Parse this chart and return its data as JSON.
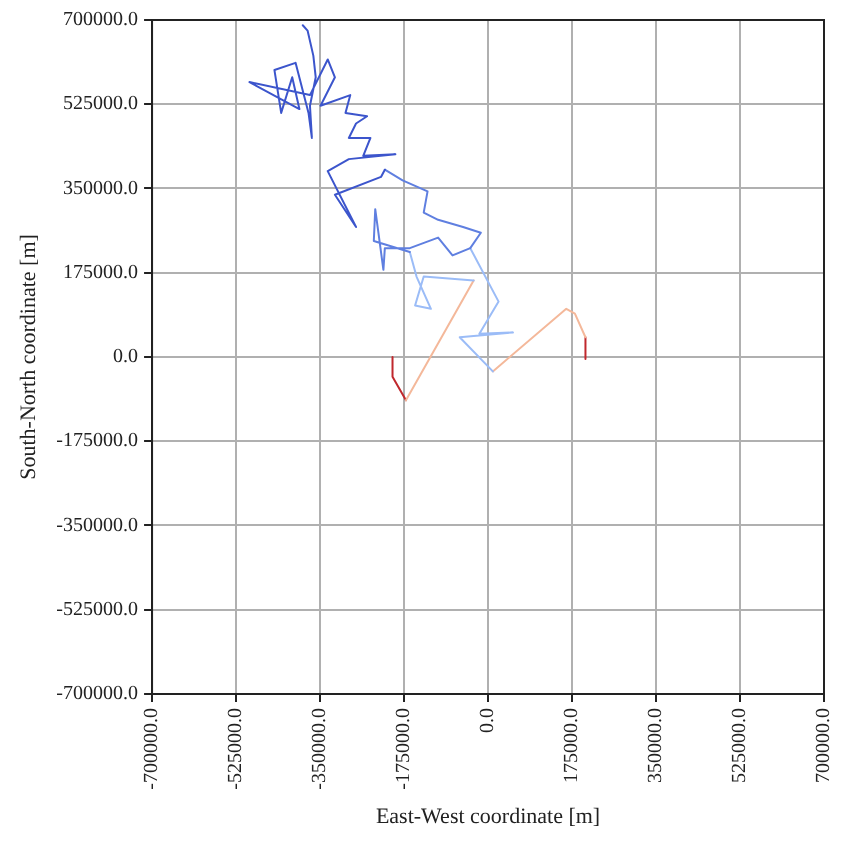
{
  "chart_data": {
    "type": "line",
    "xlabel": "East-West coordinate [m]",
    "ylabel": "South-North coordinate [m]",
    "xlim": [
      -700000,
      700000
    ],
    "ylim": [
      -700000,
      700000
    ],
    "xticks": [
      {
        "value": -700000,
        "label": "-700000.0"
      },
      {
        "value": -525000,
        "label": "-525000.0"
      },
      {
        "value": -350000,
        "label": "-350000.0"
      },
      {
        "value": -175000,
        "label": "-175000.0"
      },
      {
        "value": 0,
        "label": "0.0"
      },
      {
        "value": 175000,
        "label": "175000.0"
      },
      {
        "value": 350000,
        "label": "350000.0"
      },
      {
        "value": 525000,
        "label": "525000.0"
      },
      {
        "value": 700000,
        "label": "700000.0"
      }
    ],
    "yticks": [
      {
        "value": -700000,
        "label": "-700000.0"
      },
      {
        "value": -525000,
        "label": "-525000.0"
      },
      {
        "value": -350000,
        "label": "-350000.0"
      },
      {
        "value": -175000,
        "label": "-175000.0"
      },
      {
        "value": 0,
        "label": "0.0"
      },
      {
        "value": 175000,
        "label": "175000.0"
      },
      {
        "value": 350000,
        "label": "350000.0"
      },
      {
        "value": 525000,
        "label": "525000.0"
      },
      {
        "value": 700000,
        "label": "700000.0"
      }
    ],
    "grid": true,
    "legend": false,
    "marker": "none",
    "line_style": "solid",
    "series": [
      {
        "color": "#3c55cc",
        "x": [
          -386000,
          -376000,
          -364000,
          -359000,
          -371000,
          -367000,
          -374000,
          -401000,
          -445000,
          -431000,
          -408000,
          -393000,
          -497000,
          -371000,
          -334000,
          -319000,
          -349000,
          -287000,
          -297000,
          -252000,
          -275000,
          -290000,
          -245000,
          -260000,
          -193000,
          -290000,
          -334000,
          -275000,
          -319000,
          -223000,
          -215000
        ],
        "values": [
          689000,
          678000,
          626000,
          581000,
          522000,
          455000,
          507000,
          611000,
          596000,
          507000,
          581000,
          515000,
          571000,
          544000,
          618000,
          581000,
          522000,
          544000,
          507000,
          500000,
          485000,
          455000,
          455000,
          418000,
          421000,
          411000,
          386000,
          270000,
          337000,
          374000,
          389000
        ]
      },
      {
        "color": "#5f7fe0",
        "x": [
          -215000,
          -178000,
          -126000,
          -134000,
          -104000,
          -52000,
          -15000,
          -37000,
          -74000,
          -104000,
          -163000,
          -215000,
          -218000,
          -235000,
          -238000,
          -163000
        ],
        "values": [
          389000,
          367000,
          344000,
          300000,
          285000,
          270000,
          258000,
          226000,
          211000,
          248000,
          226000,
          226000,
          181000,
          307000,
          241000,
          218000
        ]
      },
      {
        "color": "#9bbcf7",
        "x": [
          -163000,
          -149000,
          -119000,
          -152000,
          -134000,
          -30000
        ],
        "values": [
          218000,
          167000,
          100000,
          107000,
          167000,
          159000
        ]
      },
      {
        "color": "#9bbcf7",
        "x": [
          -37000,
          22000,
          -18000,
          52000,
          -59000,
          10000
        ],
        "values": [
          226000,
          115000,
          48000,
          51000,
          41000,
          -30000
        ]
      },
      {
        "color": "#f4b89a",
        "x": [
          -30000,
          -171000
        ],
        "values": [
          159000,
          -90000
        ]
      },
      {
        "color": "#f4b89a",
        "x": [
          10000,
          163000,
          181000,
          203000
        ],
        "values": [
          -30000,
          100000,
          90000,
          41000
        ]
      },
      {
        "color": "#c0282d",
        "x": [
          -171000,
          -199000,
          -199000
        ],
        "values": [
          -90000,
          -41000,
          0
        ]
      },
      {
        "color": "#c0282d",
        "x": [
          203000,
          203000
        ],
        "values": [
          41000,
          -4000
        ]
      }
    ]
  }
}
